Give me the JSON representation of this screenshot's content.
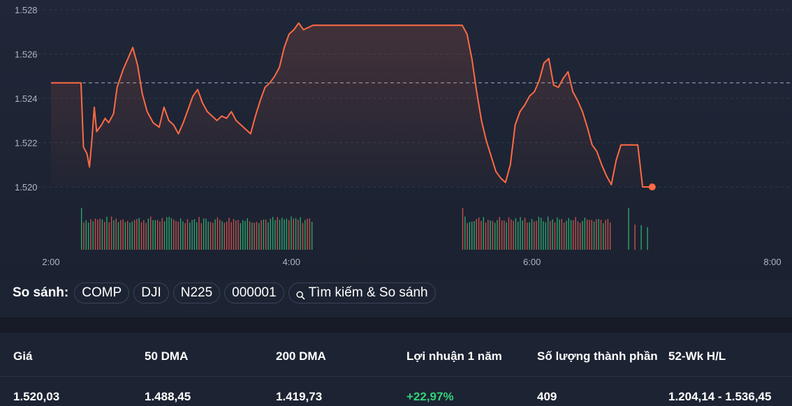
{
  "chart_data": {
    "type": "line",
    "x_ticks": [
      "2:00",
      "4:00",
      "6:00",
      "8:00"
    ],
    "y_ticks": [
      "1.528",
      "1.526",
      "1.524",
      "1.522",
      "1.520"
    ],
    "ylim": [
      1519.5,
      1528.2
    ],
    "x_range_hours": [
      2.0,
      8.0
    ],
    "reference_line": 1524.7,
    "grid": true,
    "line_color": "#ff6a45",
    "series": [
      {
        "points": [
          [
            2.0,
            1524.7
          ],
          [
            2.25,
            1524.7
          ],
          [
            2.27,
            1521.8
          ],
          [
            2.3,
            1521.5
          ],
          [
            2.32,
            1520.9
          ],
          [
            2.34,
            1522.1
          ],
          [
            2.36,
            1523.6
          ],
          [
            2.38,
            1522.5
          ],
          [
            2.42,
            1522.8
          ],
          [
            2.45,
            1523.1
          ],
          [
            2.48,
            1522.9
          ],
          [
            2.52,
            1523.3
          ],
          [
            2.55,
            1524.5
          ],
          [
            2.6,
            1525.3
          ],
          [
            2.64,
            1525.8
          ],
          [
            2.68,
            1526.3
          ],
          [
            2.72,
            1525.5
          ],
          [
            2.76,
            1524.2
          ],
          [
            2.8,
            1523.4
          ],
          [
            2.85,
            1522.9
          ],
          [
            2.9,
            1522.7
          ],
          [
            2.94,
            1523.6
          ],
          [
            2.98,
            1523.0
          ],
          [
            3.02,
            1522.8
          ],
          [
            3.06,
            1522.4
          ],
          [
            3.1,
            1522.9
          ],
          [
            3.14,
            1523.5
          ],
          [
            3.18,
            1524.1
          ],
          [
            3.22,
            1524.4
          ],
          [
            3.26,
            1523.8
          ],
          [
            3.3,
            1523.4
          ],
          [
            3.34,
            1523.2
          ],
          [
            3.38,
            1523.0
          ],
          [
            3.42,
            1523.2
          ],
          [
            3.46,
            1523.1
          ],
          [
            3.5,
            1523.4
          ],
          [
            3.54,
            1523.0
          ],
          [
            3.58,
            1522.8
          ],
          [
            3.62,
            1522.6
          ],
          [
            3.66,
            1522.4
          ],
          [
            3.7,
            1523.2
          ],
          [
            3.74,
            1523.9
          ],
          [
            3.78,
            1524.5
          ],
          [
            3.82,
            1524.7
          ],
          [
            3.86,
            1525.0
          ],
          [
            3.9,
            1525.4
          ],
          [
            3.94,
            1526.3
          ],
          [
            3.98,
            1526.9
          ],
          [
            4.02,
            1527.1
          ],
          [
            4.06,
            1527.4
          ],
          [
            4.1,
            1527.1
          ],
          [
            4.14,
            1527.2
          ],
          [
            4.18,
            1527.3
          ],
          [
            4.6,
            1527.3
          ],
          [
            5.0,
            1527.3
          ],
          [
            5.42,
            1527.3
          ],
          [
            5.46,
            1526.9
          ],
          [
            5.5,
            1525.8
          ],
          [
            5.54,
            1524.3
          ],
          [
            5.58,
            1523.0
          ],
          [
            5.62,
            1522.1
          ],
          [
            5.66,
            1521.4
          ],
          [
            5.7,
            1520.7
          ],
          [
            5.74,
            1520.4
          ],
          [
            5.78,
            1520.2
          ],
          [
            5.82,
            1521.0
          ],
          [
            5.86,
            1522.8
          ],
          [
            5.9,
            1523.4
          ],
          [
            5.94,
            1523.7
          ],
          [
            5.98,
            1524.1
          ],
          [
            6.02,
            1524.3
          ],
          [
            6.06,
            1524.8
          ],
          [
            6.1,
            1525.6
          ],
          [
            6.14,
            1525.8
          ],
          [
            6.18,
            1524.6
          ],
          [
            6.22,
            1524.5
          ],
          [
            6.26,
            1524.9
          ],
          [
            6.3,
            1525.2
          ],
          [
            6.34,
            1524.3
          ],
          [
            6.38,
            1523.9
          ],
          [
            6.42,
            1523.4
          ],
          [
            6.46,
            1522.7
          ],
          [
            6.5,
            1521.9
          ],
          [
            6.54,
            1521.6
          ],
          [
            6.58,
            1521.0
          ],
          [
            6.62,
            1520.5
          ],
          [
            6.66,
            1520.1
          ],
          [
            6.7,
            1521.2
          ],
          [
            6.74,
            1521.9
          ],
          [
            6.8,
            1521.9
          ],
          [
            6.88,
            1521.9
          ],
          [
            6.92,
            1520.0
          ],
          [
            6.96,
            1520.0
          ],
          [
            7.0,
            1520.0
          ]
        ]
      }
    ],
    "end_point": [
      7.0,
      1520.0
    ],
    "volume_segments": [
      {
        "from": 2.25,
        "to": 4.18
      },
      {
        "from": 5.42,
        "to": 6.66
      },
      {
        "from": 6.8,
        "to": 6.98
      }
    ],
    "volume_colors": {
      "up": "#2fa36b",
      "down": "#c4514a"
    }
  },
  "compare": {
    "label": "So sánh:",
    "chips": [
      "COMP",
      "DJI",
      "N225",
      "000001"
    ],
    "search_label": "Tìm kiếm & So sánh"
  },
  "stats": {
    "headers": [
      "Giá",
      "50 DMA",
      "200 DMA",
      "Lợi nhuận 1 năm",
      "Số lượng thành phần",
      "52-Wk H/L"
    ],
    "values": [
      "1.520,03",
      "1.488,45",
      "1.419,73",
      "+22,97%",
      "409",
      "1.204,14 - 1.536,45"
    ],
    "positive_color": "#33d17a"
  }
}
